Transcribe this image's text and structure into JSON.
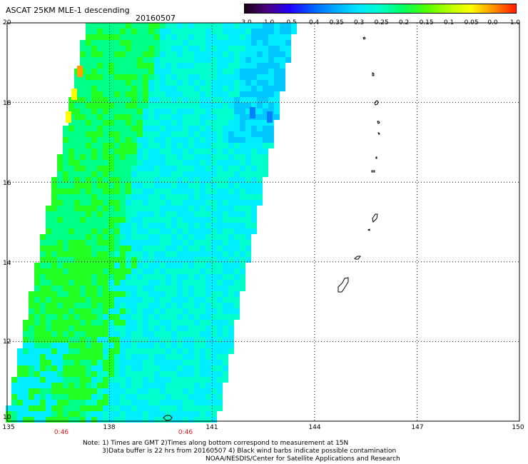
{
  "title": "ASCAT 25KM MLE-1 descending",
  "date": "20160507",
  "colorbar": {
    "labels": [
      "-3.0",
      "-1.0",
      "-0.5",
      "-0.4",
      "-0.35",
      "-0.3",
      "-0.25",
      "-0.2",
      "-0.15",
      "-0.1",
      "-0.05",
      "0.0",
      "1.0"
    ],
    "colors": [
      "#1a0018",
      "#4b0082",
      "#2000ff",
      "#0060ff",
      "#00a8ff",
      "#00e6ff",
      "#00ffc8",
      "#00ff60",
      "#50ff00",
      "#b4ff00",
      "#ffff00",
      "#ff9000",
      "#ff1a00"
    ]
  },
  "axes": {
    "lon_labels": [
      "135",
      "138",
      "141",
      "144",
      "147",
      "150"
    ],
    "lat_labels": [
      "20",
      "18",
      "16",
      "14",
      "12",
      "10"
    ],
    "lon_range": [
      135,
      150
    ],
    "lat_range": [
      10,
      20
    ]
  },
  "times": [
    "0:46",
    "0:46"
  ],
  "notes": {
    "line1": "Note: 1) Times are GMT 2)Times along bottom correspond to measurement at 15N",
    "line2": "3)Data buffer is 22 hrs from 20160507 4) Black wind barbs indicate possible contamination",
    "line3": "NOAA/NESDIS/Center for Satellite Applications and Research"
  },
  "swath": {
    "dominant_colors": [
      "#00ffcc",
      "#00ff88",
      "#22ff22",
      "#00eeff",
      "#00c8ff"
    ],
    "accent_colors": [
      "#ffa000",
      "#ffff00",
      "#0080ff"
    ]
  }
}
